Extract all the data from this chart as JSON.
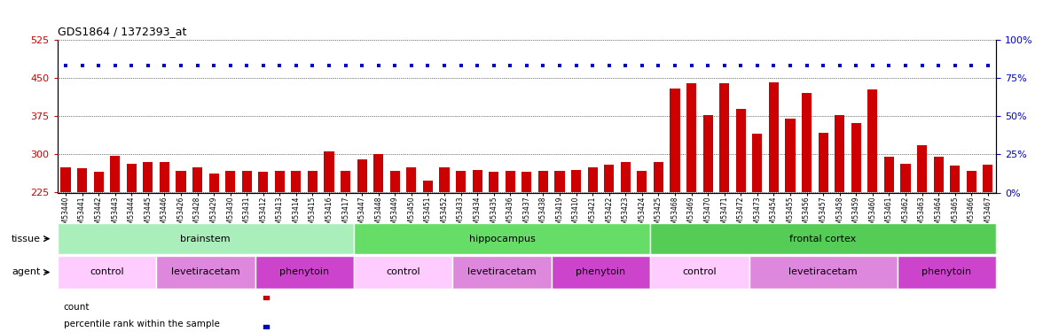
{
  "title": "GDS1864 / 1372393_at",
  "samples": [
    "GSM53440",
    "GSM53441",
    "GSM53442",
    "GSM53443",
    "GSM53444",
    "GSM53445",
    "GSM53446",
    "GSM53426",
    "GSM53428",
    "GSM53429",
    "GSM53430",
    "GSM53431",
    "GSM53412",
    "GSM53413",
    "GSM53414",
    "GSM53415",
    "GSM53416",
    "GSM53417",
    "GSM53447",
    "GSM53448",
    "GSM53449",
    "GSM53450",
    "GSM53451",
    "GSM53452",
    "GSM53433",
    "GSM53434",
    "GSM53435",
    "GSM53436",
    "GSM53437",
    "GSM53438",
    "GSM53419",
    "GSM53410",
    "GSM53421",
    "GSM53422",
    "GSM53423",
    "GSM53424",
    "GSM53425",
    "GSM53468",
    "GSM53469",
    "GSM53470",
    "GSM53471",
    "GSM53472",
    "GSM53473",
    "GSM53454",
    "GSM53455",
    "GSM53456",
    "GSM53457",
    "GSM53458",
    "GSM53459",
    "GSM53460",
    "GSM53461",
    "GSM53462",
    "GSM53463",
    "GSM53464",
    "GSM53465",
    "GSM53466",
    "GSM53467"
  ],
  "counts": [
    275,
    272,
    265,
    298,
    282,
    285,
    285,
    268,
    274,
    263,
    268,
    268,
    265,
    268,
    268,
    268,
    305,
    268,
    290,
    300,
    268,
    275,
    248,
    275,
    268,
    270,
    265,
    268,
    265,
    268,
    268,
    270,
    275,
    280,
    285,
    268,
    285,
    430,
    440,
    378,
    440,
    390,
    340,
    442,
    370,
    420,
    342,
    378,
    362,
    428,
    296,
    282,
    318,
    296,
    278,
    268,
    280
  ],
  "percentiles": [
    83,
    83,
    83,
    83,
    83,
    83,
    83,
    83,
    83,
    83,
    83,
    83,
    83,
    83,
    83,
    83,
    83,
    83,
    83,
    83,
    83,
    83,
    83,
    83,
    83,
    83,
    83,
    83,
    83,
    83,
    83,
    83,
    83,
    83,
    83,
    83,
    83,
    83,
    83,
    83,
    83,
    83,
    83,
    83,
    83,
    83,
    83,
    83,
    83,
    83,
    83,
    83,
    83,
    83,
    83,
    83,
    83
  ],
  "ylim_left": [
    225,
    525
  ],
  "ylim_right": [
    0,
    100
  ],
  "yticks_left": [
    225,
    300,
    375,
    450,
    525
  ],
  "yticks_right": [
    0,
    25,
    50,
    75,
    100
  ],
  "bar_color": "#cc0000",
  "dot_color": "#0000cc",
  "bar_bottom": 225,
  "tissue_groups": [
    {
      "label": "brainstem",
      "start": 0,
      "end": 18,
      "color": "#aaeea a"
    },
    {
      "label": "hippocampus",
      "start": 18,
      "end": 36,
      "color": "#66dd66"
    },
    {
      "label": "frontal cortex",
      "start": 36,
      "end": 57,
      "color": "#55cc55"
    }
  ],
  "agent_groups": [
    {
      "label": "control",
      "start": 0,
      "end": 6,
      "color": "#ffccff"
    },
    {
      "label": "levetiracetam",
      "start": 6,
      "end": 12,
      "color": "#dd88dd"
    },
    {
      "label": "phenytoin",
      "start": 12,
      "end": 18,
      "color": "#cc44cc"
    },
    {
      "label": "control",
      "start": 18,
      "end": 24,
      "color": "#ffccff"
    },
    {
      "label": "levetiracetam",
      "start": 24,
      "end": 30,
      "color": "#dd88dd"
    },
    {
      "label": "phenytoin",
      "start": 30,
      "end": 36,
      "color": "#cc44cc"
    },
    {
      "label": "control",
      "start": 36,
      "end": 42,
      "color": "#ffccff"
    },
    {
      "label": "levetiracetam",
      "start": 42,
      "end": 51,
      "color": "#dd88dd"
    },
    {
      "label": "phenytoin",
      "start": 51,
      "end": 57,
      "color": "#cc44cc"
    }
  ],
  "left_label_color": "#cc0000",
  "right_label_color": "#0000cc",
  "grid_color": "#888888",
  "bg_color": "#ffffff"
}
